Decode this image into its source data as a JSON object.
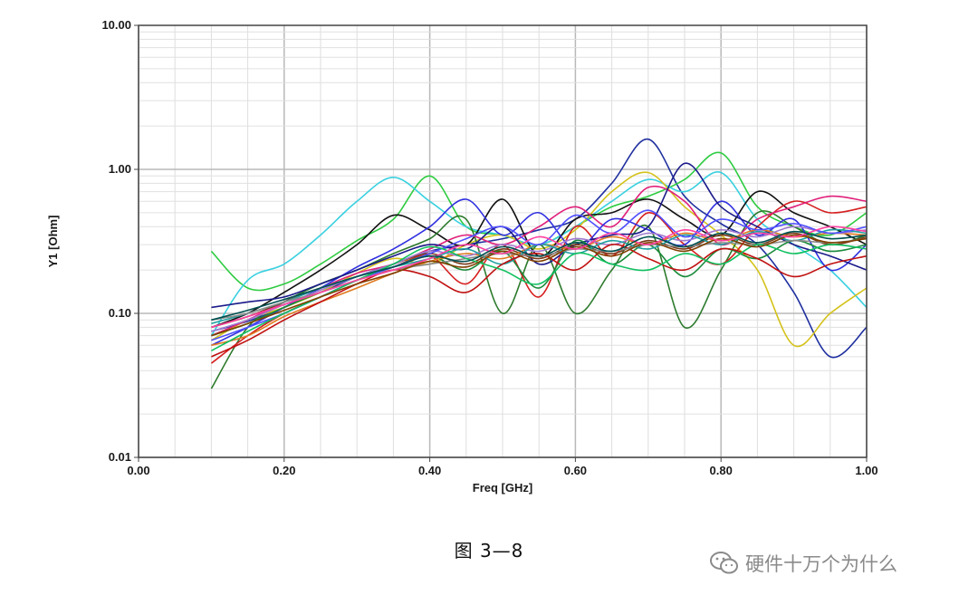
{
  "caption": "图 3—8",
  "watermark": {
    "text": "硬件十万个为什么",
    "icon": "wechat-icon"
  },
  "chart_data": {
    "type": "line",
    "title": "",
    "xlabel": "Freq [GHz]",
    "ylabel": "Y1 [Ohm]",
    "xscale": "linear",
    "yscale": "log",
    "xlim": [
      0.0,
      1.0
    ],
    "ylim": [
      0.01,
      10.0
    ],
    "x_ticks": [
      "0.00",
      "0.20",
      "0.40",
      "0.60",
      "0.80",
      "1.00"
    ],
    "y_ticks": [
      "0.01",
      "0.10",
      "1.00",
      "10.00"
    ],
    "grid": true,
    "legend": "none",
    "x": [
      0.1,
      0.15,
      0.2,
      0.25,
      0.3,
      0.35,
      0.4,
      0.45,
      0.5,
      0.55,
      0.6,
      0.65,
      0.7,
      0.75,
      0.8,
      0.85,
      0.9,
      0.95,
      1.0
    ],
    "series": [
      {
        "color": "#1f2f9f",
        "values": [
          0.075,
          0.088,
          0.11,
          0.14,
          0.18,
          0.22,
          0.27,
          0.3,
          0.33,
          0.38,
          0.45,
          0.8,
          1.62,
          0.65,
          0.42,
          0.3,
          0.14,
          0.05,
          0.08
        ]
      },
      {
        "color": "#2ecc40",
        "values": [
          0.27,
          0.15,
          0.16,
          0.22,
          0.32,
          0.45,
          0.9,
          0.4,
          0.35,
          0.3,
          0.4,
          0.55,
          0.65,
          0.85,
          1.3,
          0.55,
          0.4,
          0.35,
          0.5
        ]
      },
      {
        "color": "#39d0e0",
        "values": [
          0.07,
          0.17,
          0.22,
          0.35,
          0.6,
          0.88,
          0.6,
          0.4,
          0.35,
          0.3,
          0.4,
          0.6,
          0.85,
          0.7,
          0.95,
          0.45,
          0.3,
          0.2,
          0.11
        ]
      },
      {
        "color": "#d4c21a",
        "values": [
          0.065,
          0.09,
          0.11,
          0.14,
          0.19,
          0.24,
          0.22,
          0.3,
          0.35,
          0.28,
          0.38,
          0.7,
          0.95,
          0.55,
          0.35,
          0.2,
          0.06,
          0.1,
          0.15
        ]
      },
      {
        "color": "#111111",
        "values": [
          0.08,
          0.1,
          0.14,
          0.2,
          0.3,
          0.48,
          0.38,
          0.3,
          0.62,
          0.25,
          0.45,
          0.5,
          0.62,
          0.45,
          0.35,
          0.7,
          0.5,
          0.4,
          0.3
        ]
      },
      {
        "color": "#2d7a2d",
        "values": [
          0.03,
          0.08,
          0.12,
          0.16,
          0.2,
          0.26,
          0.33,
          0.45,
          0.1,
          0.3,
          0.1,
          0.2,
          0.4,
          0.08,
          0.2,
          0.5,
          0.4,
          0.3,
          0.35
        ]
      },
      {
        "color": "#d62020",
        "values": [
          0.045,
          0.07,
          0.1,
          0.13,
          0.17,
          0.21,
          0.25,
          0.16,
          0.3,
          0.13,
          0.4,
          0.25,
          0.5,
          0.3,
          0.22,
          0.4,
          0.6,
          0.5,
          0.55
        ]
      },
      {
        "color": "#e0207a",
        "values": [
          0.07,
          0.09,
          0.12,
          0.15,
          0.19,
          0.22,
          0.28,
          0.35,
          0.3,
          0.4,
          0.55,
          0.4,
          0.75,
          0.6,
          0.3,
          0.45,
          0.55,
          0.65,
          0.6
        ]
      },
      {
        "color": "#3030e0",
        "values": [
          0.06,
          0.08,
          0.11,
          0.15,
          0.21,
          0.28,
          0.4,
          0.62,
          0.35,
          0.5,
          0.28,
          0.45,
          0.38,
          0.3,
          0.6,
          0.35,
          0.45,
          0.2,
          0.3
        ]
      },
      {
        "color": "#1a1a8a",
        "values": [
          0.11,
          0.12,
          0.13,
          0.16,
          0.2,
          0.25,
          0.3,
          0.28,
          0.4,
          0.22,
          0.3,
          0.35,
          0.4,
          1.1,
          0.55,
          0.4,
          0.3,
          0.25,
          0.2
        ]
      },
      {
        "color": "#7a3a1a",
        "values": [
          0.08,
          0.095,
          0.12,
          0.15,
          0.18,
          0.22,
          0.26,
          0.22,
          0.28,
          0.24,
          0.3,
          0.26,
          0.32,
          0.28,
          0.35,
          0.3,
          0.36,
          0.3,
          0.34
        ]
      },
      {
        "color": "#1a8a3a",
        "values": [
          0.07,
          0.085,
          0.11,
          0.14,
          0.17,
          0.21,
          0.25,
          0.2,
          0.27,
          0.15,
          0.32,
          0.22,
          0.3,
          0.18,
          0.28,
          0.24,
          0.32,
          0.27,
          0.3
        ]
      },
      {
        "color": "#e07a20",
        "values": [
          0.06,
          0.07,
          0.095,
          0.12,
          0.15,
          0.19,
          0.23,
          0.26,
          0.24,
          0.3,
          0.28,
          0.34,
          0.3,
          0.36,
          0.32,
          0.38,
          0.34,
          0.36,
          0.35
        ]
      },
      {
        "color": "#a07ad0",
        "values": [
          0.075,
          0.09,
          0.115,
          0.145,
          0.18,
          0.22,
          0.27,
          0.25,
          0.3,
          0.27,
          0.33,
          0.3,
          0.36,
          0.32,
          0.38,
          0.34,
          0.4,
          0.36,
          0.38
        ]
      },
      {
        "color": "#20a0a0",
        "values": [
          0.085,
          0.1,
          0.12,
          0.15,
          0.18,
          0.21,
          0.24,
          0.28,
          0.22,
          0.3,
          0.26,
          0.32,
          0.28,
          0.35,
          0.3,
          0.37,
          0.32,
          0.38,
          0.36
        ]
      },
      {
        "color": "#c01010",
        "values": [
          0.05,
          0.065,
          0.09,
          0.12,
          0.16,
          0.2,
          0.18,
          0.14,
          0.22,
          0.26,
          0.2,
          0.3,
          0.24,
          0.2,
          0.28,
          0.24,
          0.18,
          0.22,
          0.25
        ]
      },
      {
        "color": "#8a8a8a",
        "values": [
          0.09,
          0.1,
          0.12,
          0.14,
          0.17,
          0.2,
          0.22,
          0.24,
          0.26,
          0.25,
          0.28,
          0.27,
          0.3,
          0.29,
          0.31,
          0.3,
          0.32,
          0.31,
          0.33
        ]
      },
      {
        "color": "#5050ff",
        "values": [
          0.065,
          0.08,
          0.1,
          0.13,
          0.17,
          0.21,
          0.26,
          0.33,
          0.4,
          0.3,
          0.48,
          0.36,
          0.52,
          0.34,
          0.45,
          0.38,
          0.42,
          0.36,
          0.4
        ]
      },
      {
        "color": "#10c060",
        "values": [
          0.055,
          0.075,
          0.1,
          0.13,
          0.17,
          0.22,
          0.29,
          0.24,
          0.2,
          0.16,
          0.26,
          0.22,
          0.2,
          0.26,
          0.22,
          0.3,
          0.26,
          0.3,
          0.28
        ]
      },
      {
        "color": "#804000",
        "values": [
          0.07,
          0.085,
          0.105,
          0.13,
          0.16,
          0.19,
          0.23,
          0.21,
          0.27,
          0.23,
          0.29,
          0.25,
          0.31,
          0.27,
          0.33,
          0.29,
          0.35,
          0.31,
          0.33
        ]
      },
      {
        "color": "#ff40a0",
        "values": [
          0.08,
          0.095,
          0.115,
          0.14,
          0.17,
          0.2,
          0.24,
          0.3,
          0.26,
          0.34,
          0.28,
          0.36,
          0.3,
          0.38,
          0.32,
          0.36,
          0.34,
          0.4,
          0.37
        ]
      },
      {
        "color": "#005050",
        "values": [
          0.09,
          0.105,
          0.125,
          0.15,
          0.18,
          0.21,
          0.25,
          0.23,
          0.29,
          0.25,
          0.31,
          0.27,
          0.34,
          0.29,
          0.36,
          0.31,
          0.37,
          0.33,
          0.35
        ]
      }
    ]
  }
}
